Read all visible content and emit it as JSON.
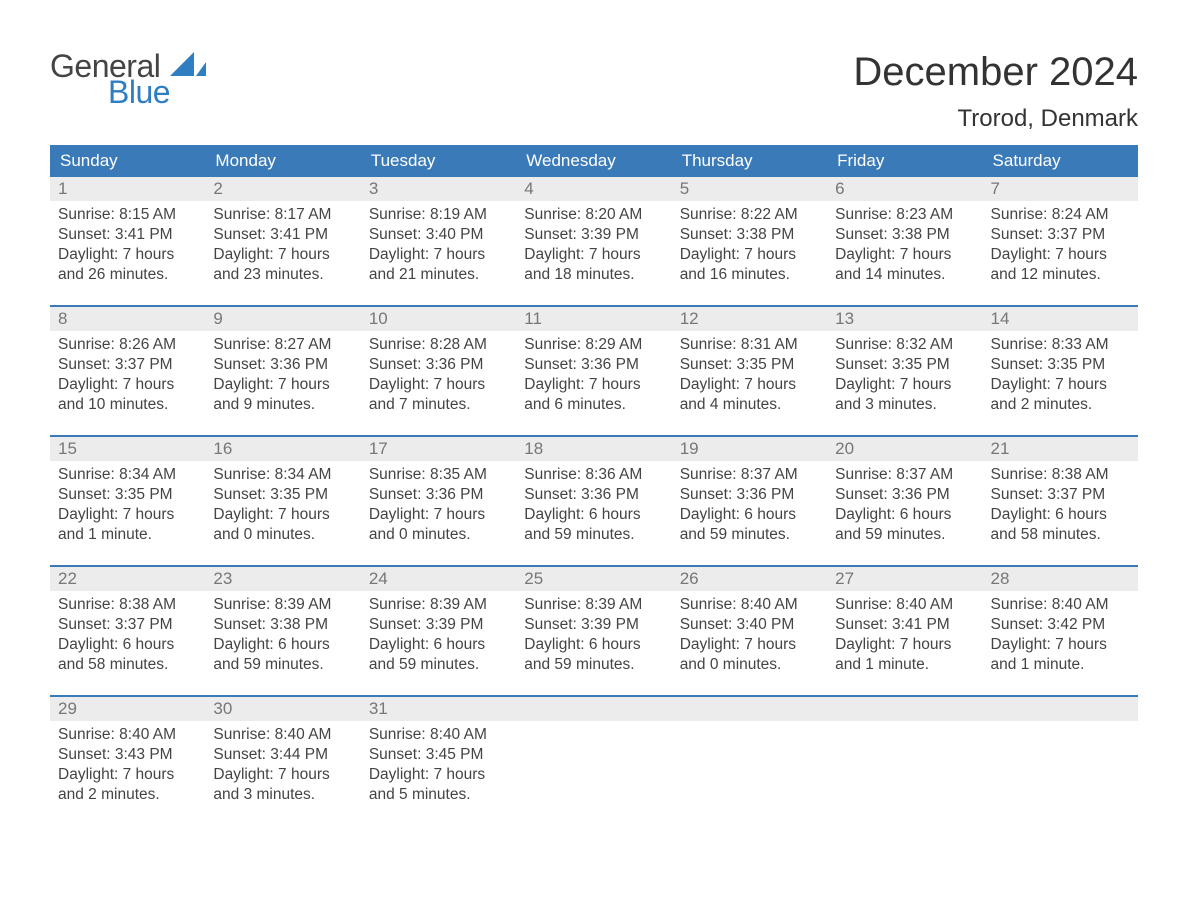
{
  "logo": {
    "text_top": "General",
    "text_bottom": "Blue"
  },
  "title": "December 2024",
  "location": "Trorod, Denmark",
  "colors": {
    "header_bg": "#3b7ab8",
    "header_text": "#ffffff",
    "daynum_bg": "#ececec",
    "daynum_text": "#777777",
    "body_text": "#444444",
    "week_border": "#3b7ab8",
    "logo_gray": "#444444",
    "logo_blue": "#2f7ec2"
  },
  "typography": {
    "title_fontsize": 40,
    "location_fontsize": 24,
    "header_fontsize": 17,
    "daynum_fontsize": 17,
    "body_fontsize": 15.5
  },
  "day_names": [
    "Sunday",
    "Monday",
    "Tuesday",
    "Wednesday",
    "Thursday",
    "Friday",
    "Saturday"
  ],
  "weeks": [
    [
      {
        "n": "1",
        "sunrise": "Sunrise: 8:15 AM",
        "sunset": "Sunset: 3:41 PM",
        "d1": "Daylight: 7 hours",
        "d2": "and 26 minutes."
      },
      {
        "n": "2",
        "sunrise": "Sunrise: 8:17 AM",
        "sunset": "Sunset: 3:41 PM",
        "d1": "Daylight: 7 hours",
        "d2": "and 23 minutes."
      },
      {
        "n": "3",
        "sunrise": "Sunrise: 8:19 AM",
        "sunset": "Sunset: 3:40 PM",
        "d1": "Daylight: 7 hours",
        "d2": "and 21 minutes."
      },
      {
        "n": "4",
        "sunrise": "Sunrise: 8:20 AM",
        "sunset": "Sunset: 3:39 PM",
        "d1": "Daylight: 7 hours",
        "d2": "and 18 minutes."
      },
      {
        "n": "5",
        "sunrise": "Sunrise: 8:22 AM",
        "sunset": "Sunset: 3:38 PM",
        "d1": "Daylight: 7 hours",
        "d2": "and 16 minutes."
      },
      {
        "n": "6",
        "sunrise": "Sunrise: 8:23 AM",
        "sunset": "Sunset: 3:38 PM",
        "d1": "Daylight: 7 hours",
        "d2": "and 14 minutes."
      },
      {
        "n": "7",
        "sunrise": "Sunrise: 8:24 AM",
        "sunset": "Sunset: 3:37 PM",
        "d1": "Daylight: 7 hours",
        "d2": "and 12 minutes."
      }
    ],
    [
      {
        "n": "8",
        "sunrise": "Sunrise: 8:26 AM",
        "sunset": "Sunset: 3:37 PM",
        "d1": "Daylight: 7 hours",
        "d2": "and 10 minutes."
      },
      {
        "n": "9",
        "sunrise": "Sunrise: 8:27 AM",
        "sunset": "Sunset: 3:36 PM",
        "d1": "Daylight: 7 hours",
        "d2": "and 9 minutes."
      },
      {
        "n": "10",
        "sunrise": "Sunrise: 8:28 AM",
        "sunset": "Sunset: 3:36 PM",
        "d1": "Daylight: 7 hours",
        "d2": "and 7 minutes."
      },
      {
        "n": "11",
        "sunrise": "Sunrise: 8:29 AM",
        "sunset": "Sunset: 3:36 PM",
        "d1": "Daylight: 7 hours",
        "d2": "and 6 minutes."
      },
      {
        "n": "12",
        "sunrise": "Sunrise: 8:31 AM",
        "sunset": "Sunset: 3:35 PM",
        "d1": "Daylight: 7 hours",
        "d2": "and 4 minutes."
      },
      {
        "n": "13",
        "sunrise": "Sunrise: 8:32 AM",
        "sunset": "Sunset: 3:35 PM",
        "d1": "Daylight: 7 hours",
        "d2": "and 3 minutes."
      },
      {
        "n": "14",
        "sunrise": "Sunrise: 8:33 AM",
        "sunset": "Sunset: 3:35 PM",
        "d1": "Daylight: 7 hours",
        "d2": "and 2 minutes."
      }
    ],
    [
      {
        "n": "15",
        "sunrise": "Sunrise: 8:34 AM",
        "sunset": "Sunset: 3:35 PM",
        "d1": "Daylight: 7 hours",
        "d2": "and 1 minute."
      },
      {
        "n": "16",
        "sunrise": "Sunrise: 8:34 AM",
        "sunset": "Sunset: 3:35 PM",
        "d1": "Daylight: 7 hours",
        "d2": "and 0 minutes."
      },
      {
        "n": "17",
        "sunrise": "Sunrise: 8:35 AM",
        "sunset": "Sunset: 3:36 PM",
        "d1": "Daylight: 7 hours",
        "d2": "and 0 minutes."
      },
      {
        "n": "18",
        "sunrise": "Sunrise: 8:36 AM",
        "sunset": "Sunset: 3:36 PM",
        "d1": "Daylight: 6 hours",
        "d2": "and 59 minutes."
      },
      {
        "n": "19",
        "sunrise": "Sunrise: 8:37 AM",
        "sunset": "Sunset: 3:36 PM",
        "d1": "Daylight: 6 hours",
        "d2": "and 59 minutes."
      },
      {
        "n": "20",
        "sunrise": "Sunrise: 8:37 AM",
        "sunset": "Sunset: 3:36 PM",
        "d1": "Daylight: 6 hours",
        "d2": "and 59 minutes."
      },
      {
        "n": "21",
        "sunrise": "Sunrise: 8:38 AM",
        "sunset": "Sunset: 3:37 PM",
        "d1": "Daylight: 6 hours",
        "d2": "and 58 minutes."
      }
    ],
    [
      {
        "n": "22",
        "sunrise": "Sunrise: 8:38 AM",
        "sunset": "Sunset: 3:37 PM",
        "d1": "Daylight: 6 hours",
        "d2": "and 58 minutes."
      },
      {
        "n": "23",
        "sunrise": "Sunrise: 8:39 AM",
        "sunset": "Sunset: 3:38 PM",
        "d1": "Daylight: 6 hours",
        "d2": "and 59 minutes."
      },
      {
        "n": "24",
        "sunrise": "Sunrise: 8:39 AM",
        "sunset": "Sunset: 3:39 PM",
        "d1": "Daylight: 6 hours",
        "d2": "and 59 minutes."
      },
      {
        "n": "25",
        "sunrise": "Sunrise: 8:39 AM",
        "sunset": "Sunset: 3:39 PM",
        "d1": "Daylight: 6 hours",
        "d2": "and 59 minutes."
      },
      {
        "n": "26",
        "sunrise": "Sunrise: 8:40 AM",
        "sunset": "Sunset: 3:40 PM",
        "d1": "Daylight: 7 hours",
        "d2": "and 0 minutes."
      },
      {
        "n": "27",
        "sunrise": "Sunrise: 8:40 AM",
        "sunset": "Sunset: 3:41 PM",
        "d1": "Daylight: 7 hours",
        "d2": "and 1 minute."
      },
      {
        "n": "28",
        "sunrise": "Sunrise: 8:40 AM",
        "sunset": "Sunset: 3:42 PM",
        "d1": "Daylight: 7 hours",
        "d2": "and 1 minute."
      }
    ],
    [
      {
        "n": "29",
        "sunrise": "Sunrise: 8:40 AM",
        "sunset": "Sunset: 3:43 PM",
        "d1": "Daylight: 7 hours",
        "d2": "and 2 minutes."
      },
      {
        "n": "30",
        "sunrise": "Sunrise: 8:40 AM",
        "sunset": "Sunset: 3:44 PM",
        "d1": "Daylight: 7 hours",
        "d2": "and 3 minutes."
      },
      {
        "n": "31",
        "sunrise": "Sunrise: 8:40 AM",
        "sunset": "Sunset: 3:45 PM",
        "d1": "Daylight: 7 hours",
        "d2": "and 5 minutes."
      },
      null,
      null,
      null,
      null
    ]
  ]
}
